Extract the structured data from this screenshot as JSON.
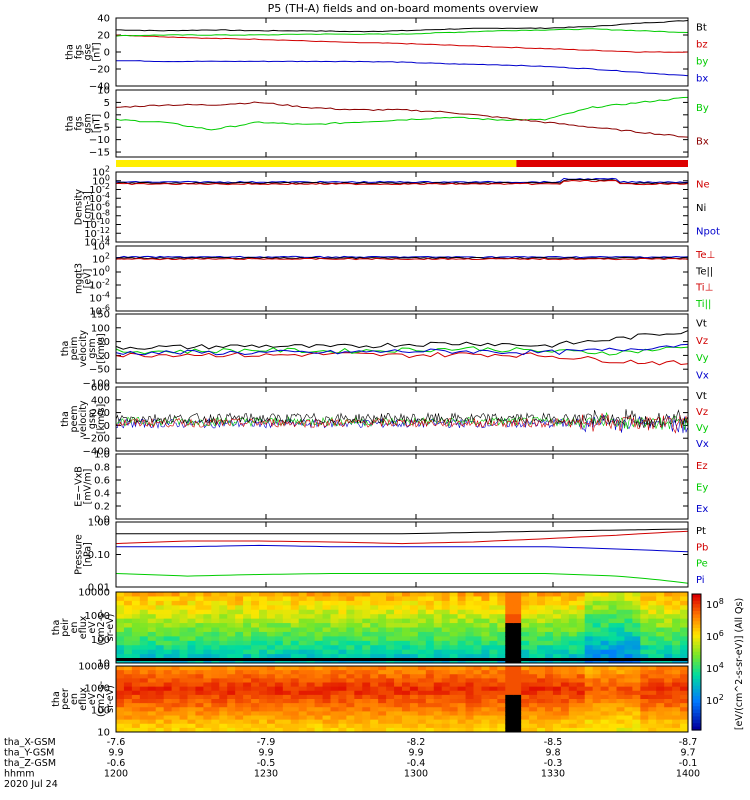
{
  "title": "P5 (TH-A) fields and on-board moments overview",
  "footer": {
    "date": "2020 Jul 24",
    "rows": [
      {
        "label": "tha_X-GSM",
        "values": [
          "-7.6",
          "-7.9",
          "-8.2",
          "-8.5",
          "-8.7"
        ]
      },
      {
        "label": "tha_Y-GSM",
        "values": [
          "9.9",
          "9.9",
          "9.9",
          "9.8",
          "9.7"
        ]
      },
      {
        "label": "tha_Z-GSM",
        "values": [
          "-0.6",
          "-0.5",
          "-0.4",
          "-0.3",
          "-0.1"
        ]
      },
      {
        "label": "hhmm",
        "values": [
          "1200",
          "1230",
          "1300",
          "1330",
          "1400"
        ]
      }
    ]
  },
  "colorbar": {
    "label": "[eV/(cm^2-s-sr-eV)] (All Qs)",
    "ticks": [
      "10^8",
      "10^6",
      "10^4",
      "10^2"
    ]
  },
  "panels": [
    {
      "id": "fgs-gse",
      "ylabel": [
        "tha",
        "fgs",
        "gse",
        "[nT]"
      ],
      "ylim": [
        -40,
        40
      ],
      "ticks": [
        "40",
        "20",
        "0",
        "−20",
        "−40"
      ],
      "tick_values": [
        40,
        20,
        0,
        -20,
        -40
      ],
      "legend": [
        {
          "label": "Bt",
          "color": "#000000"
        },
        {
          "label": "bz",
          "color": "#d00000"
        },
        {
          "label": "by",
          "color": "#00cc00"
        },
        {
          "label": "bx",
          "color": "#0000cc"
        }
      ]
    },
    {
      "id": "fgs-gsm",
      "ylabel": [
        "tha",
        "fgs",
        "gsm",
        "[nT]"
      ],
      "ylim": [
        -17,
        10
      ],
      "ticks": [
        "10",
        "5",
        "0",
        "−5",
        "−10",
        "−15"
      ],
      "tick_values": [
        10,
        5,
        0,
        -5,
        -10,
        -15
      ],
      "legend": [
        {
          "label": "By",
          "color": "#00cc00"
        },
        {
          "label": "Bx",
          "color": "#8b0000"
        }
      ]
    },
    {
      "id": "density",
      "ylabel": [
        "Density",
        "[cm-3]"
      ],
      "ticks": [
        "10^2",
        "10^0",
        "10^-2",
        "10^-4",
        "10^-6",
        "10^-8",
        "10^-10",
        "10^-12",
        "10^-14"
      ],
      "legend": [
        {
          "label": "Ne",
          "color": "#d00000"
        },
        {
          "label": "Ni",
          "color": "#000000"
        },
        {
          "label": "Npot",
          "color": "#0000cc"
        }
      ]
    },
    {
      "id": "temperature",
      "ylabel": [
        "mgqt3",
        "[eV]"
      ],
      "ticks": [
        "10^4",
        "10^2",
        "10^0",
        "10^-2",
        "10^-4",
        "10^-6"
      ],
      "legend": [
        {
          "label": "Te⊥",
          "color": "#d00000"
        },
        {
          "label": "Te||",
          "color": "#000000"
        },
        {
          "label": "Ti⊥",
          "color": "#d00000"
        },
        {
          "label": "Ti||",
          "color": "#00cc00"
        }
      ]
    },
    {
      "id": "peim-velocity",
      "ylabel": [
        "tha",
        "peim",
        "velocity",
        "gsm",
        "[km/s]"
      ],
      "ylim": [
        -100,
        150
      ],
      "ticks": [
        "150",
        "100",
        "50",
        "0",
        "−50",
        "−100"
      ],
      "tick_values": [
        150,
        100,
        50,
        0,
        -50,
        -100
      ],
      "legend": [
        {
          "label": "Vt",
          "color": "#000000"
        },
        {
          "label": "Vz",
          "color": "#d00000"
        },
        {
          "label": "Vy",
          "color": "#00cc00"
        },
        {
          "label": "Vx",
          "color": "#0000cc"
        }
      ]
    },
    {
      "id": "peem-velocity",
      "ylabel": [
        "tha",
        "peem",
        "velocity",
        "gsm",
        "[km/s]"
      ],
      "ylim": [
        -400,
        600
      ],
      "ticks": [
        "600",
        "400",
        "200",
        "0",
        "−200",
        "−400"
      ],
      "tick_values": [
        600,
        400,
        200,
        0,
        -200,
        -400
      ],
      "legend": [
        {
          "label": "Vt",
          "color": "#000000"
        },
        {
          "label": "Vz",
          "color": "#d00000"
        },
        {
          "label": "Vy",
          "color": "#00cc00"
        },
        {
          "label": "Vx",
          "color": "#0000cc"
        }
      ]
    },
    {
      "id": "efield",
      "ylabel": [
        "E=−VxB",
        "[mV/m]"
      ],
      "ylim": [
        0,
        1
      ],
      "ticks": [
        "1.0",
        "0.8",
        "0.6",
        "0.4",
        "0.2",
        "0.0"
      ],
      "tick_values": [
        1.0,
        0.8,
        0.6,
        0.4,
        0.2,
        0.0
      ],
      "legend": [
        {
          "label": "Ez",
          "color": "#d00000"
        },
        {
          "label": "Ey",
          "color": "#00cc00"
        },
        {
          "label": "Ex",
          "color": "#0000cc"
        }
      ]
    },
    {
      "id": "pressure",
      "ylabel": [
        "Pressure",
        "[nPa]"
      ],
      "ticks": [
        "1.00",
        "0.10",
        "0.01"
      ],
      "legend": [
        {
          "label": "Pt",
          "color": "#000000"
        },
        {
          "label": "Pb",
          "color": "#d00000"
        },
        {
          "label": "Pe",
          "color": "#00cc00"
        },
        {
          "label": "Pi",
          "color": "#0000cc"
        }
      ]
    },
    {
      "id": "peir",
      "ylabel": [
        "tha",
        "peir",
        "en",
        "eflux",
        "eV",
        "(cm2-s-",
        "sr-eV)"
      ],
      "ticks": [
        "10000",
        "1000",
        "100",
        "10"
      ]
    },
    {
      "id": "peer",
      "ylabel": [
        "tha",
        "peer",
        "en",
        "eflux",
        "eV",
        "(cm2-s-",
        "sr-eV)"
      ],
      "ticks": [
        "10000",
        "1000",
        "100",
        "10"
      ]
    }
  ],
  "chart_data": {
    "type": "line",
    "title": "P5 (TH-A) fields and on-board moments overview",
    "x": {
      "label": "hhmm",
      "ticks": [
        "1200",
        "1230",
        "1300",
        "1330",
        "1400"
      ],
      "date": "2020 Jul 24"
    },
    "mode_bar": [
      {
        "from": "1200",
        "to": "1324",
        "color": "#ffee00"
      },
      {
        "from": "1324",
        "to": "1400",
        "color": "#dd0000"
      }
    ],
    "panels": [
      {
        "id": "fgs-gse",
        "x": [
          "1200",
          "1210",
          "1220",
          "1230",
          "1240",
          "1250",
          "1300",
          "1310",
          "1320",
          "1330",
          "1340",
          "1350",
          "1400"
        ],
        "series": [
          {
            "name": "Bt",
            "values": [
              26,
              25,
              26,
              25,
              25,
              24,
              25,
              27,
              28,
              28,
              30,
              34,
              37
            ]
          },
          {
            "name": "bz",
            "values": [
              20,
              18,
              16,
              15,
              13,
              11,
              10,
              8,
              6,
              4,
              2,
              0,
              0
            ]
          },
          {
            "name": "by",
            "values": [
              19,
              20,
              20,
              20,
              21,
              21,
              21,
              23,
              25,
              26,
              27,
              25,
              23
            ]
          },
          {
            "name": "bx",
            "values": [
              -10,
              -11,
              -11,
              -11,
              -11,
              -11,
              -12,
              -14,
              -15,
              -17,
              -20,
              -24,
              -28
            ]
          }
        ]
      },
      {
        "id": "fgs-gsm",
        "x": [
          "1200",
          "1210",
          "1220",
          "1230",
          "1240",
          "1250",
          "1300",
          "1310",
          "1320",
          "1330",
          "1340",
          "1350",
          "1400"
        ],
        "series": [
          {
            "name": "By",
            "values": [
              -2,
              -3,
              -6,
              -3,
              -4,
              -3,
              -2,
              -1,
              -2,
              -2,
              3,
              5,
              7
            ]
          },
          {
            "name": "Bx",
            "values": [
              3,
              4,
              4,
              5,
              3,
              2,
              2,
              1,
              -1,
              -3,
              -5,
              -7,
              -9
            ]
          }
        ]
      },
      {
        "id": "peim-velocity",
        "x": [
          "1200",
          "1215",
          "1230",
          "1245",
          "1300",
          "1315",
          "1330",
          "1345",
          "1400"
        ],
        "series": [
          {
            "name": "Vt",
            "values": [
              30,
              30,
              35,
              30,
              40,
              45,
              35,
              60,
              90
            ]
          },
          {
            "name": "Vz",
            "values": [
              0,
              5,
              0,
              5,
              0,
              5,
              0,
              -20,
              -30
            ]
          },
          {
            "name": "Vy",
            "values": [
              15,
              15,
              20,
              15,
              20,
              25,
              15,
              10,
              30
            ]
          },
          {
            "name": "Vx",
            "values": [
              10,
              10,
              10,
              10,
              15,
              15,
              10,
              20,
              40
            ]
          }
        ]
      },
      {
        "id": "pressure",
        "x": [
          "1200",
          "1215",
          "1230",
          "1245",
          "1300",
          "1315",
          "1330",
          "1345",
          "1400"
        ],
        "series": [
          {
            "name": "Pt",
            "values": [
              0.5,
              0.5,
              0.5,
              0.5,
              0.5,
              0.55,
              0.6,
              0.65,
              0.7
            ]
          },
          {
            "name": "Pb",
            "values": [
              0.25,
              0.3,
              0.3,
              0.28,
              0.25,
              0.28,
              0.35,
              0.45,
              0.6
            ]
          },
          {
            "name": "Pe",
            "values": [
              0.03,
              0.025,
              0.028,
              0.03,
              0.03,
              0.03,
              0.03,
              0.025,
              0.015
            ]
          },
          {
            "name": "Pi",
            "values": [
              0.2,
              0.2,
              0.22,
              0.2,
              0.2,
              0.2,
              0.2,
              0.17,
              0.14
            ]
          }
        ]
      }
    ]
  }
}
